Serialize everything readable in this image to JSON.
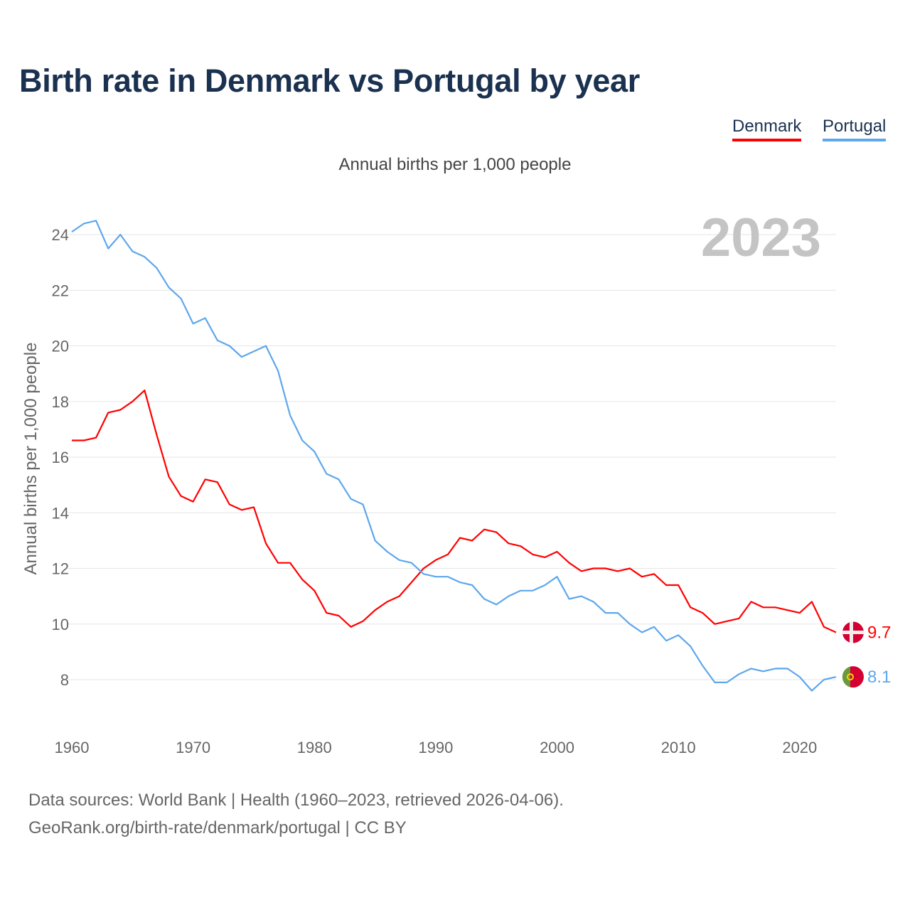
{
  "title": "Birth rate in Denmark vs Portugal by year",
  "legend": [
    "Denmark",
    "Portugal"
  ],
  "subtitle": "Annual births per 1,000 people",
  "year_label": "2023",
  "footer": {
    "line1": "Data sources: World Bank | Health (1960–2023, retrieved 2026-04-06).",
    "line2": "GeoRank.org/birth-rate/denmark/portugal | CC BY"
  },
  "chart_data": {
    "type": "line",
    "title": "Birth rate in Denmark vs Portugal by year",
    "ylabel": "Annual births per 1,000 people",
    "xlabel": "",
    "xlim": [
      1960,
      2023
    ],
    "ylim": [
      7,
      25
    ],
    "xticks": [
      1960,
      1970,
      1980,
      1990,
      2000,
      2010,
      2020
    ],
    "yticks": [
      8,
      10,
      12,
      14,
      16,
      18,
      20,
      22,
      24
    ],
    "grid": true,
    "legend_position": "top-right",
    "x": [
      1960,
      1961,
      1962,
      1963,
      1964,
      1965,
      1966,
      1967,
      1968,
      1969,
      1970,
      1971,
      1972,
      1973,
      1974,
      1975,
      1976,
      1977,
      1978,
      1979,
      1980,
      1981,
      1982,
      1983,
      1984,
      1985,
      1986,
      1987,
      1988,
      1989,
      1990,
      1991,
      1992,
      1993,
      1994,
      1995,
      1996,
      1997,
      1998,
      1999,
      2000,
      2001,
      2002,
      2003,
      2004,
      2005,
      2006,
      2007,
      2008,
      2009,
      2010,
      2011,
      2012,
      2013,
      2014,
      2015,
      2016,
      2017,
      2018,
      2019,
      2020,
      2021,
      2022,
      2023
    ],
    "series": [
      {
        "name": "Denmark",
        "color": "#ff0000",
        "end_label": "9.7",
        "values": [
          16.6,
          16.6,
          16.7,
          17.6,
          17.7,
          18.0,
          18.4,
          16.8,
          15.3,
          14.6,
          14.4,
          15.2,
          15.1,
          14.3,
          14.1,
          14.2,
          12.9,
          12.2,
          12.2,
          11.6,
          11.2,
          10.4,
          10.3,
          9.9,
          10.1,
          10.5,
          10.8,
          11.0,
          11.5,
          12.0,
          12.3,
          12.5,
          13.1,
          13.0,
          13.4,
          13.3,
          12.9,
          12.8,
          12.5,
          12.4,
          12.6,
          12.2,
          11.9,
          12.0,
          12.0,
          11.9,
          12.0,
          11.7,
          11.8,
          11.4,
          11.4,
          10.6,
          10.4,
          10.0,
          10.1,
          10.2,
          10.8,
          10.6,
          10.6,
          10.5,
          10.4,
          10.8,
          9.9,
          9.7
        ]
      },
      {
        "name": "Portugal",
        "color": "#5da7ec",
        "end_label": "8.1",
        "values": [
          24.1,
          24.4,
          24.5,
          23.5,
          24.0,
          23.4,
          23.2,
          22.8,
          22.1,
          21.7,
          20.8,
          21.0,
          20.2,
          20.0,
          19.6,
          19.8,
          20.0,
          19.1,
          17.5,
          16.6,
          16.2,
          15.4,
          15.2,
          14.5,
          14.3,
          13.0,
          12.6,
          12.3,
          12.2,
          11.8,
          11.7,
          11.7,
          11.5,
          11.4,
          10.9,
          10.7,
          11.0,
          11.2,
          11.2,
          11.4,
          11.7,
          10.9,
          11.0,
          10.8,
          10.4,
          10.4,
          10.0,
          9.7,
          9.9,
          9.4,
          9.6,
          9.2,
          8.5,
          7.9,
          7.9,
          8.2,
          8.4,
          8.3,
          8.4,
          8.4,
          8.1,
          7.6,
          8.0,
          8.1
        ]
      }
    ]
  }
}
